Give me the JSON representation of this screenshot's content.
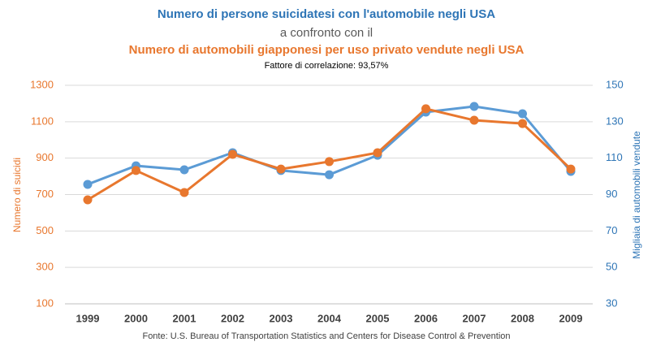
{
  "chart_data": {
    "type": "line",
    "title": "Numero di persone suicidatesi con l'automobile negli USA",
    "title_connector": "a confronto con il",
    "title_secondary": "Numero di automobili giapponesi per uso privato vendute negli USA",
    "subtitle": "Fattore di correlazione: 93,57%",
    "source": "Fonte:  U.S. Bureau of Transportation Statistics and Centers for Disease Control & Prevention",
    "ylabel": "Numero di suicidi",
    "y2label": "Migliaia di automobili vendute",
    "categories": [
      "1999",
      "2000",
      "2001",
      "2002",
      "2003",
      "2004",
      "2005",
      "2006",
      "2007",
      "2008",
      "2009"
    ],
    "series": [
      {
        "color": "#5b9bd5",
        "axis": "y2",
        "values": [
          95.6,
          105.8,
          103.6,
          113,
          103.2,
          100.9,
          111.6,
          135.3,
          138.4,
          134.4,
          102.7
        ]
      },
      {
        "color": "#e8772e",
        "values": [
          671,
          832,
          711,
          921,
          840,
          881,
          930,
          1171,
          1108,
          1090,
          840
        ]
      }
    ],
    "ylim": [
      100,
      1300
    ],
    "yticks": [
      100,
      300,
      500,
      700,
      900,
      1100,
      1300
    ],
    "ycolor": "#e8772e",
    "y2lim": [
      30,
      150
    ],
    "y2ticks": [
      30,
      50,
      70,
      90,
      110,
      130,
      150
    ],
    "y2color": "#2e75b6",
    "grid": true
  }
}
